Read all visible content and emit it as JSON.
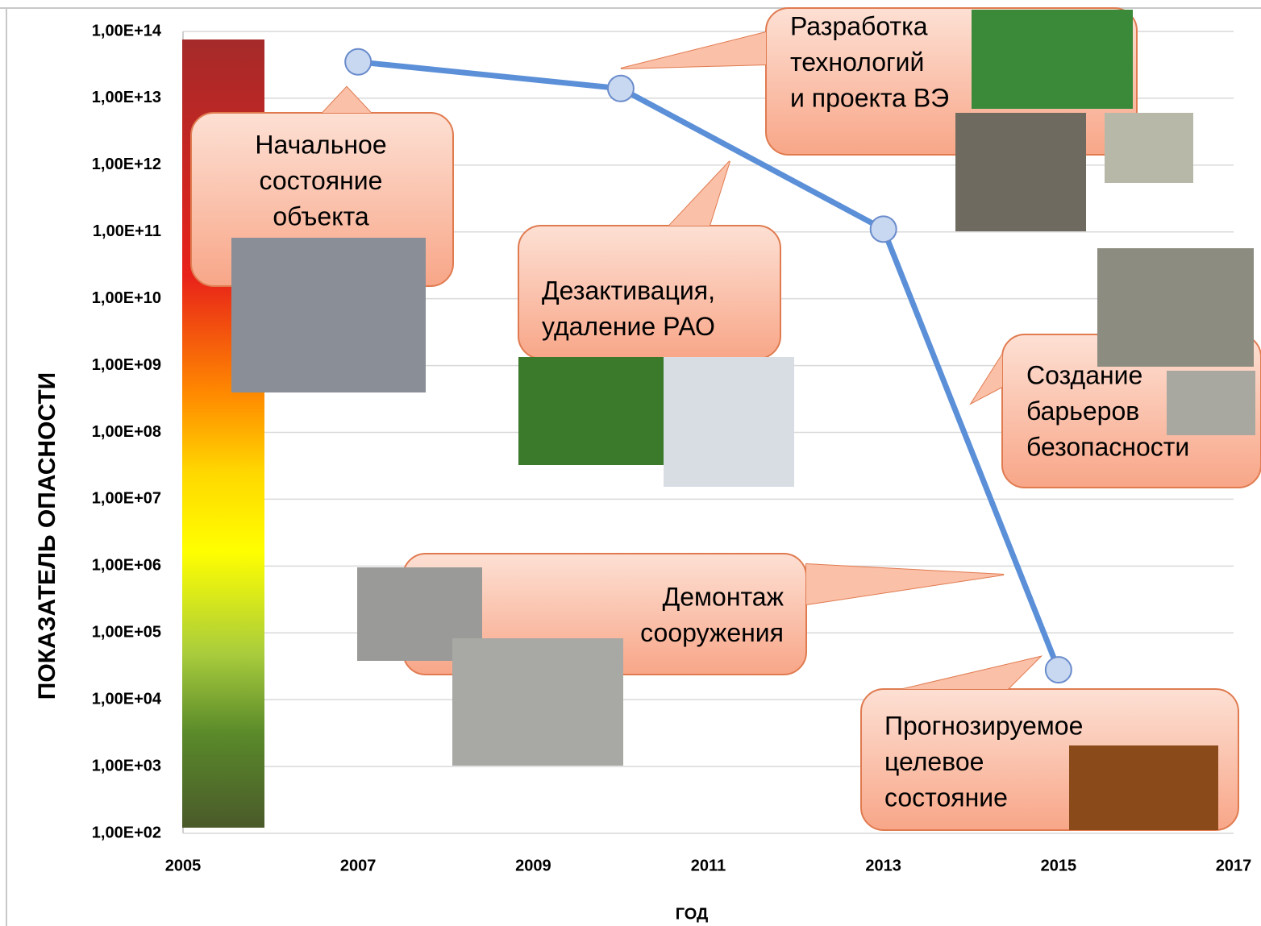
{
  "chart_data": {
    "type": "line",
    "xlabel": "ГОД",
    "ylabel": "ПОКАЗАТЕЛЬ  ОПАСНОСТИ",
    "x": [
      2007,
      2010,
      2013,
      2015
    ],
    "values": [
      35000000000000,
      14000000000000,
      110000000000,
      28000
    ],
    "color": "#5b8fd8",
    "xlim": [
      2005,
      2017
    ],
    "xticks": [
      2005,
      2007,
      2009,
      2011,
      2013,
      2015,
      2017
    ],
    "ylim": [
      100,
      100000000000000
    ],
    "ylog": true,
    "grid": true,
    "yticks": [
      {
        "value": 100,
        "label": "1,00E+02"
      },
      {
        "value": 1000,
        "label": "1,00E+03"
      },
      {
        "value": 10000,
        "label": "1,00E+04"
      },
      {
        "value": 100000,
        "label": "1,00E+05"
      },
      {
        "value": 1000000,
        "label": "1,00E+06"
      },
      {
        "value": 10000000,
        "label": "1,00E+07"
      },
      {
        "value": 100000000,
        "label": "1,00E+08"
      },
      {
        "value": 1000000000,
        "label": "1,00E+09"
      },
      {
        "value": 10000000000,
        "label": "1,00E+10"
      },
      {
        "value": 100000000000,
        "label": "1,00E+11"
      },
      {
        "value": 1000000000000,
        "label": "1,00E+12"
      },
      {
        "value": 10000000000000,
        "label": "1,00E+13"
      },
      {
        "value": 100000000000000,
        "label": "1,00E+14"
      }
    ],
    "annotations": [
      {
        "lines": [
          "Начальное",
          "состояние",
          "объекта"
        ]
      },
      {
        "lines": [
          "Разработка",
          "технологий",
          "и проекта ВЭ"
        ]
      },
      {
        "lines": [
          "Дезактивация,",
          "удаление РАО"
        ]
      },
      {
        "lines": [
          "Создание",
          "барьеров",
          "безопасности"
        ]
      },
      {
        "lines": [
          "Демонтаж",
          "сооружения"
        ]
      },
      {
        "lines": [
          "Прогнозируемое",
          "целевое",
          "состояние"
        ]
      }
    ]
  }
}
